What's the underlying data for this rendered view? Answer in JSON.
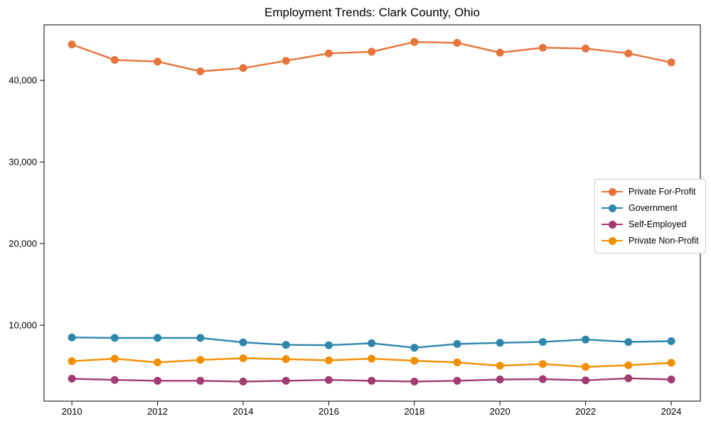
{
  "chart_data": {
    "type": "line",
    "title": "Employment Trends: Clark County, Ohio",
    "xlabel": "",
    "ylabel": "",
    "grid": false,
    "legend_position": "middle-right",
    "x": [
      2010,
      2011,
      2012,
      2013,
      2014,
      2015,
      2016,
      2017,
      2018,
      2019,
      2020,
      2021,
      2022,
      2023,
      2024
    ],
    "xticks": [
      2010,
      2012,
      2014,
      2016,
      2018,
      2020,
      2022,
      2024
    ],
    "yticks": [
      {
        "value": 10000,
        "label": "10,000"
      },
      {
        "value": 20000,
        "label": "20,000"
      },
      {
        "value": 30000,
        "label": "30,000"
      },
      {
        "value": 40000,
        "label": "40,000"
      }
    ],
    "xlim": [
      2009.35,
      2024.68
    ],
    "ylim": [
      700,
      46800
    ],
    "series": [
      {
        "name": "Private For-Profit",
        "color": "#E8743B",
        "values": [
          44400,
          42500,
          42300,
          41100,
          41500,
          42400,
          43300,
          43500,
          44700,
          44600,
          43400,
          44000,
          43900,
          43300,
          42200
        ]
      },
      {
        "name": "Government",
        "color": "#2E86AB",
        "values": [
          8500,
          8450,
          8450,
          8450,
          7900,
          7600,
          7550,
          7800,
          7250,
          7700,
          7850,
          7950,
          8250,
          7950,
          8050
        ]
      },
      {
        "name": "Self-Employed",
        "color": "#A23B72",
        "values": [
          3450,
          3300,
          3200,
          3200,
          3100,
          3200,
          3300,
          3200,
          3100,
          3200,
          3350,
          3400,
          3250,
          3500,
          3350
        ]
      },
      {
        "name": "Private Non-Profit",
        "color": "#F18F01",
        "values": [
          5600,
          5900,
          5450,
          5750,
          5950,
          5850,
          5700,
          5900,
          5650,
          5450,
          5050,
          5250,
          4900,
          5100,
          5400
        ]
      }
    ]
  }
}
